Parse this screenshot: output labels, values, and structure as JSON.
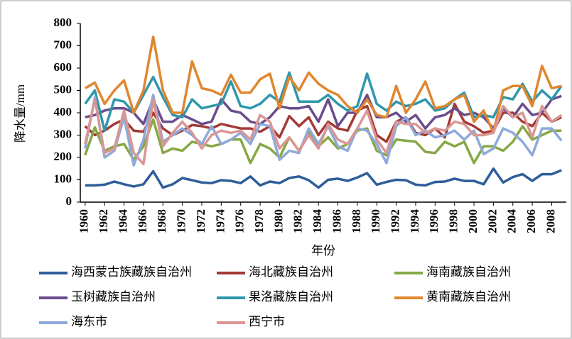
{
  "chart_data": {
    "type": "line",
    "x_label": "年份",
    "y_label": "降水量/mm",
    "x": [
      1960,
      1961,
      1962,
      1963,
      1964,
      1965,
      1966,
      1967,
      1968,
      1969,
      1970,
      1971,
      1972,
      1973,
      1974,
      1975,
      1976,
      1977,
      1978,
      1979,
      1980,
      1981,
      1982,
      1983,
      1984,
      1985,
      1986,
      1987,
      1988,
      1989,
      1990,
      1991,
      1992,
      1993,
      1994,
      1995,
      1996,
      1997,
      1998,
      1999,
      2000,
      2001,
      2002,
      2003,
      2004,
      2005,
      2006,
      2007,
      2008,
      2009
    ],
    "xlim": [
      1959.5,
      2009.5
    ],
    "xticks": [
      1960,
      1962,
      1964,
      1966,
      1968,
      1970,
      1972,
      1974,
      1976,
      1978,
      1980,
      1982,
      1984,
      1986,
      1988,
      1990,
      1992,
      1994,
      1996,
      1998,
      2000,
      2002,
      2004,
      2006,
      2008
    ],
    "ylim": [
      0,
      800
    ],
    "yticks": [
      0,
      100,
      200,
      300,
      400,
      500,
      600,
      700,
      800
    ],
    "series": [
      {
        "name": "海西蒙古族藏族自治州",
        "color": "#2e5d9a",
        "values": [
          75,
          75,
          78,
          92,
          80,
          70,
          80,
          138,
          65,
          80,
          108,
          98,
          88,
          85,
          98,
          95,
          85,
          115,
          75,
          92,
          85,
          108,
          115,
          98,
          65,
          100,
          105,
          95,
          110,
          130,
          78,
          90,
          100,
          98,
          78,
          75,
          90,
          92,
          105,
          95,
          95,
          80,
          150,
          88,
          112,
          125,
          95,
          125,
          125,
          143
        ]
      },
      {
        "name": "海北藏族自治州",
        "color": "#a33a35",
        "values": [
          340,
          300,
          320,
          350,
          370,
          320,
          315,
          400,
          330,
          300,
          320,
          345,
          340,
          330,
          350,
          340,
          330,
          330,
          315,
          340,
          290,
          385,
          340,
          380,
          300,
          360,
          330,
          320,
          410,
          430,
          300,
          270,
          360,
          380,
          310,
          300,
          330,
          290,
          440,
          360,
          340,
          310,
          320,
          400,
          400,
          360,
          340,
          400,
          360,
          380
        ]
      },
      {
        "name": "海南藏族自治州",
        "color": "#86a845",
        "values": [
          210,
          335,
          230,
          250,
          260,
          190,
          250,
          370,
          220,
          240,
          230,
          270,
          260,
          250,
          260,
          280,
          280,
          175,
          260,
          240,
          200,
          290,
          230,
          310,
          250,
          290,
          240,
          260,
          320,
          330,
          230,
          210,
          280,
          275,
          270,
          225,
          220,
          270,
          250,
          270,
          175,
          250,
          250,
          230,
          270,
          340,
          280,
          300,
          320,
          320
        ]
      },
      {
        "name": "玉树藏族自治州",
        "color": "#6a4c8c",
        "values": [
          380,
          390,
          410,
          420,
          420,
          400,
          350,
          460,
          360,
          360,
          390,
          370,
          350,
          360,
          460,
          410,
          400,
          360,
          350,
          380,
          430,
          420,
          420,
          430,
          360,
          460,
          340,
          400,
          400,
          480,
          380,
          380,
          400,
          360,
          390,
          330,
          380,
          390,
          420,
          390,
          400,
          380,
          330,
          420,
          380,
          440,
          390,
          400,
          460,
          475
        ]
      },
      {
        "name": "果洛藏族自治州",
        "color": "#2f97ab",
        "values": [
          440,
          500,
          320,
          460,
          450,
          400,
          480,
          560,
          470,
          390,
          380,
          460,
          420,
          430,
          440,
          540,
          430,
          420,
          440,
          480,
          450,
          580,
          450,
          450,
          450,
          480,
          440,
          410,
          430,
          575,
          440,
          410,
          450,
          430,
          440,
          460,
          410,
          420,
          460,
          490,
          380,
          390,
          380,
          470,
          460,
          530,
          450,
          500,
          460,
          520
        ]
      },
      {
        "name": "黄南藏族自治州",
        "color": "#e0862f",
        "values": [
          510,
          535,
          440,
          500,
          545,
          400,
          500,
          740,
          500,
          400,
          400,
          630,
          510,
          500,
          480,
          570,
          490,
          490,
          550,
          575,
          420,
          560,
          500,
          580,
          530,
          500,
          480,
          430,
          400,
          460,
          390,
          380,
          520,
          400,
          460,
          540,
          420,
          430,
          460,
          480,
          360,
          410,
          310,
          500,
          520,
          520,
          430,
          610,
          510,
          520
        ]
      },
      {
        "name": "海东市",
        "color": "#8ea9db",
        "values": [
          240,
          470,
          200,
          230,
          380,
          165,
          280,
          480,
          270,
          300,
          330,
          300,
          260,
          340,
          260,
          280,
          310,
          260,
          350,
          340,
          190,
          230,
          220,
          330,
          260,
          340,
          250,
          230,
          330,
          320,
          260,
          175,
          340,
          380,
          300,
          320,
          290,
          300,
          320,
          280,
          320,
          215,
          240,
          330,
          310,
          270,
          210,
          330,
          330,
          275
        ]
      },
      {
        "name": "西宁市",
        "color": "#d99694",
        "values": [
          260,
          460,
          220,
          240,
          410,
          220,
          170,
          460,
          250,
          310,
          360,
          310,
          240,
          300,
          320,
          310,
          320,
          280,
          390,
          360,
          240,
          290,
          230,
          300,
          240,
          350,
          280,
          260,
          330,
          410,
          280,
          220,
          360,
          350,
          350,
          310,
          330,
          320,
          360,
          350,
          300,
          300,
          310,
          430,
          380,
          400,
          290,
          430,
          360,
          390
        ]
      }
    ]
  }
}
